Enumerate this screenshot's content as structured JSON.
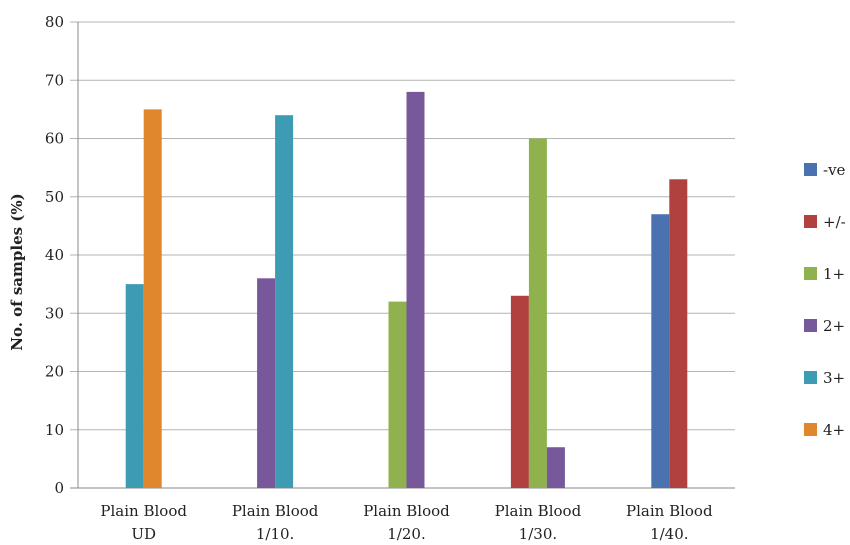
{
  "chart_data": {
    "type": "bar",
    "title": "",
    "xlabel": "",
    "ylabel": "No. of samples (%)",
    "ylim": [
      0,
      80
    ],
    "yticks": [
      0,
      10,
      20,
      30,
      40,
      50,
      60,
      70,
      80
    ],
    "grid": true,
    "legend_position": "right",
    "categories": [
      [
        "Plain Blood",
        "UD"
      ],
      [
        "Plain Blood",
        "1/10."
      ],
      [
        "Plain Blood",
        "1/20."
      ],
      [
        "Plain Blood",
        "1/30."
      ],
      [
        "Plain Blood",
        "1/40."
      ]
    ],
    "series": [
      {
        "name": "-ve",
        "color": "#4a72b0",
        "values": [
          0,
          0,
          0,
          0,
          47
        ]
      },
      {
        "name": "+/-",
        "color": "#b0413e",
        "values": [
          0,
          0,
          0,
          33,
          53
        ]
      },
      {
        "name": "1+",
        "color": "#8fb24e",
        "values": [
          0,
          0,
          32,
          60,
          0
        ]
      },
      {
        "name": "2+",
        "color": "#77589a",
        "values": [
          0,
          36,
          68,
          7,
          0
        ]
      },
      {
        "name": "3+",
        "color": "#3d9bb3",
        "values": [
          35,
          64,
          0,
          0,
          0
        ]
      },
      {
        "name": "4+",
        "color": "#e0862d",
        "values": [
          65,
          0,
          0,
          0,
          0
        ]
      }
    ]
  }
}
